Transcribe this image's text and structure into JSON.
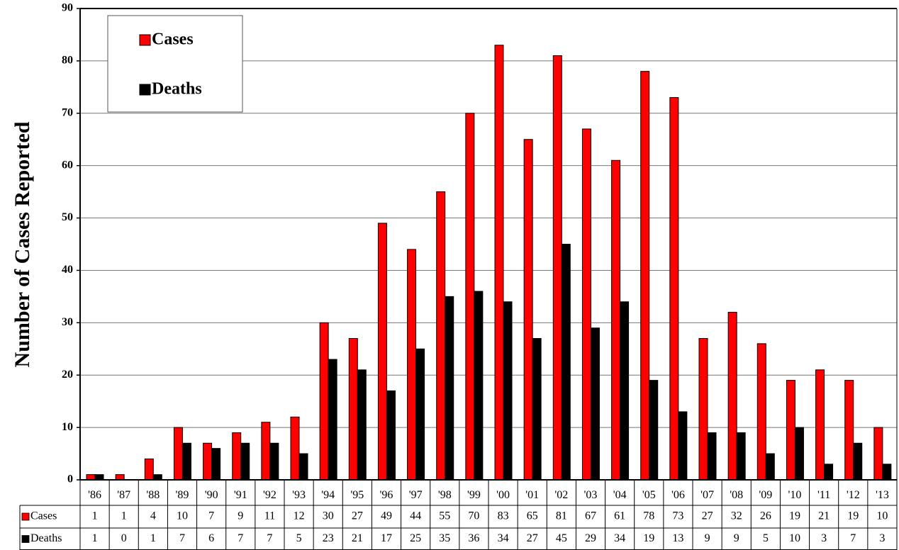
{
  "chart_data": {
    "type": "bar",
    "y_label": "Number of Cases Reported",
    "categories": [
      "'86",
      "'87",
      "'88",
      "'89",
      "'90",
      "'91",
      "'92",
      "'93",
      "'94",
      "'95",
      "'96",
      "'97",
      "'98",
      "'99",
      "'00",
      "'01",
      "'02",
      "'03",
      "'04",
      "'05",
      "'06",
      "'07",
      "'08",
      "'09",
      "'10",
      "'11",
      "'12",
      "'13"
    ],
    "series": [
      {
        "name": "Cases",
        "color": "#ff0000",
        "values": [
          1,
          1,
          4,
          10,
          7,
          9,
          11,
          12,
          30,
          27,
          49,
          44,
          55,
          70,
          83,
          65,
          81,
          67,
          61,
          78,
          73,
          27,
          32,
          26,
          19,
          21,
          19,
          10
        ]
      },
      {
        "name": "Deaths",
        "color": "#000000",
        "values": [
          1,
          0,
          1,
          7,
          6,
          7,
          7,
          5,
          23,
          21,
          17,
          25,
          35,
          36,
          34,
          27,
          45,
          29,
          34,
          19,
          13,
          9,
          9,
          5,
          10,
          3,
          7,
          3
        ]
      }
    ],
    "ylim": [
      0,
      90
    ],
    "yticks": [
      0,
      10,
      20,
      30,
      40,
      50,
      60,
      70,
      80,
      90
    ],
    "grid": true,
    "legend": "top-left",
    "data_table": true
  }
}
